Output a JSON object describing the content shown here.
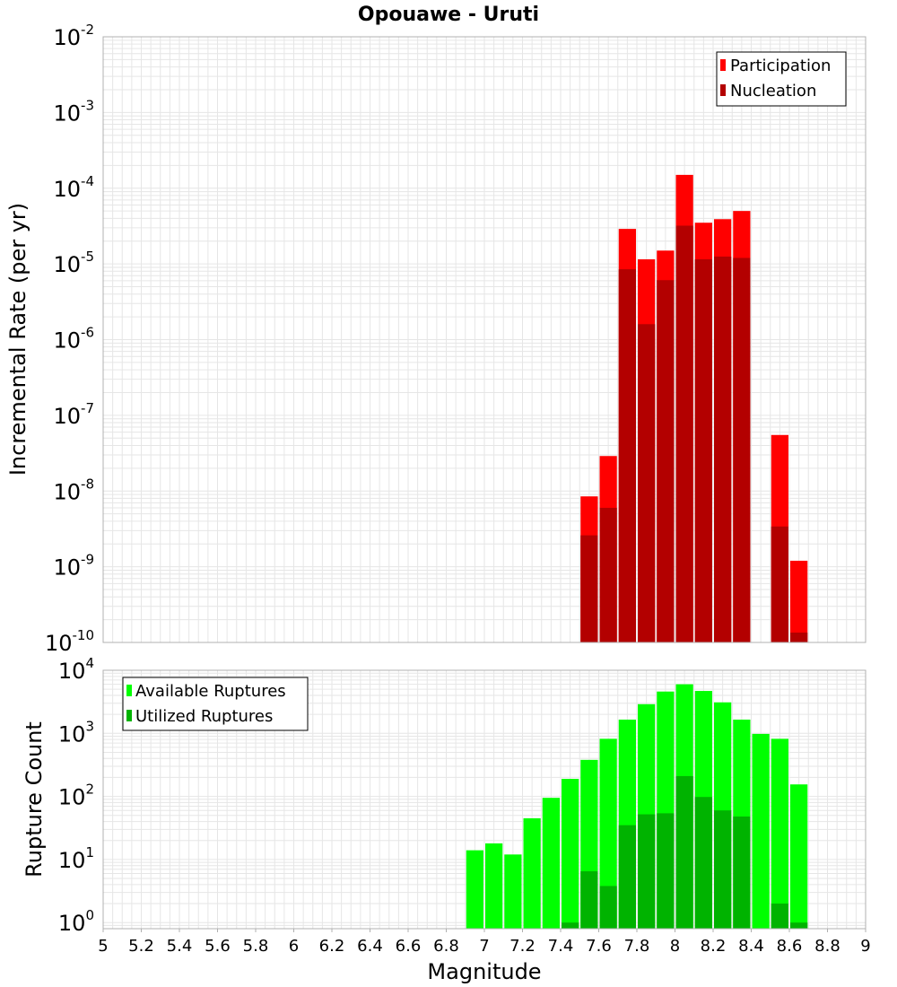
{
  "title": "Opouawe - Uruti",
  "xlabel": "Magnitude",
  "colors": {
    "participation": "#ff0000",
    "nucleation": "#b30000",
    "available": "#00ff00",
    "utilized": "#00b300",
    "grid": "#e6e6e6",
    "frame": "#b0b0b0"
  },
  "chart_data": [
    {
      "type": "bar",
      "panel": "top",
      "ylabel": "Incremental Rate (per yr)",
      "yscale": "log",
      "ylim": [
        1e-10,
        0.01
      ],
      "xlim": [
        5,
        9
      ],
      "x_ticks": [],
      "y_ticks": [
        {
          "base": "10",
          "exp": "-2"
        },
        {
          "base": "10",
          "exp": "-3"
        },
        {
          "base": "10",
          "exp": "-4"
        },
        {
          "base": "10",
          "exp": "-5"
        },
        {
          "base": "10",
          "exp": "-6"
        },
        {
          "base": "10",
          "exp": "-7"
        },
        {
          "base": "10",
          "exp": "-8"
        },
        {
          "base": "10",
          "exp": "-9"
        },
        {
          "base": "10",
          "exp": "-10"
        }
      ],
      "legend": {
        "position": "top-right"
      },
      "series": [
        {
          "name": "Participation",
          "color_key": "participation",
          "x": [
            7.55,
            7.65,
            7.75,
            7.85,
            7.95,
            8.05,
            8.15,
            8.25,
            8.35,
            8.55,
            8.65
          ],
          "values": [
            8.5e-09,
            2.9e-08,
            2.9e-05,
            1.15e-05,
            1.5e-05,
            0.00015,
            3.5e-05,
            3.9e-05,
            5e-05,
            5.5e-08,
            1.2e-09
          ]
        },
        {
          "name": "Nucleation",
          "color_key": "nucleation",
          "x": [
            7.55,
            7.65,
            7.75,
            7.85,
            7.95,
            8.05,
            8.15,
            8.25,
            8.35,
            8.55,
            8.65
          ],
          "values": [
            2.6e-09,
            6e-09,
            8.5e-06,
            1.6e-06,
            6.1e-06,
            3.2e-05,
            1.15e-05,
            1.25e-05,
            1.2e-05,
            3.4e-09,
            1.35e-10
          ]
        }
      ]
    },
    {
      "type": "bar",
      "panel": "bottom",
      "ylabel": "Rupture Count",
      "yscale": "log",
      "ylim": [
        0.8,
        10000
      ],
      "xlim": [
        5,
        9
      ],
      "x_ticks": [
        "5",
        "5.2",
        "5.4",
        "5.6",
        "5.8",
        "6",
        "6.2",
        "6.4",
        "6.6",
        "6.8",
        "7",
        "7.2",
        "7.4",
        "7.6",
        "7.8",
        "8",
        "8.2",
        "8.4",
        "8.6",
        "8.8",
        "9"
      ],
      "y_ticks": [
        {
          "base": "10",
          "exp": "4"
        },
        {
          "base": "10",
          "exp": "3"
        },
        {
          "base": "10",
          "exp": "2"
        },
        {
          "base": "10",
          "exp": "1"
        },
        {
          "base": "10",
          "exp": "0"
        }
      ],
      "legend": {
        "position": "top-left"
      },
      "series": [
        {
          "name": "Available Ruptures",
          "color_key": "available",
          "x": [
            6.95,
            7.05,
            7.15,
            7.25,
            7.35,
            7.45,
            7.55,
            7.65,
            7.75,
            7.85,
            7.95,
            8.05,
            8.15,
            8.25,
            8.35,
            8.45,
            8.55,
            8.65
          ],
          "values": [
            14,
            18,
            12,
            45,
            95,
            190,
            380,
            820,
            1650,
            2900,
            4600,
            6000,
            4700,
            3100,
            1650,
            980,
            820,
            155
          ]
        },
        {
          "name": "Utilized Ruptures",
          "color_key": "utilized",
          "x": [
            7.45,
            7.55,
            7.65,
            7.75,
            7.85,
            7.95,
            8.05,
            8.15,
            8.25,
            8.35,
            8.55,
            8.65
          ],
          "values": [
            1,
            6.5,
            3.8,
            35,
            52,
            54,
            210,
            98,
            60,
            48,
            2,
            1
          ]
        }
      ]
    }
  ]
}
